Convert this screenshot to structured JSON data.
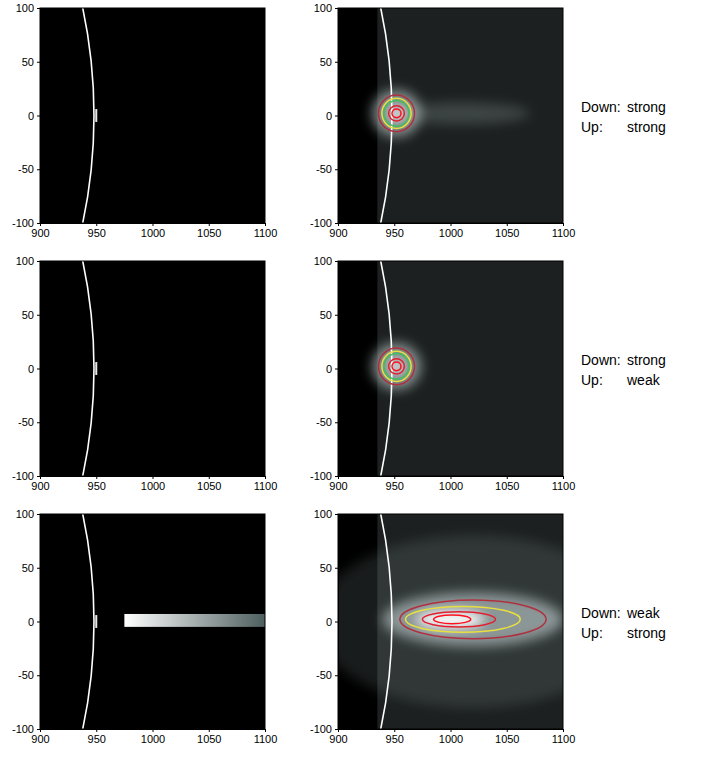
{
  "chart_data": [
    {
      "type": "image",
      "xlim": [
        900,
        1100
      ],
      "ylim": [
        -100,
        100
      ],
      "xticks": [
        900,
        950,
        1000,
        1050,
        1100
      ],
      "yticks": [
        -100,
        -50,
        0,
        50,
        100
      ],
      "limb": {
        "cx": 448,
        "cy": 0,
        "r": 500
      },
      "source": {
        "x": 950,
        "y0": -6,
        "y1": 6
      }
    },
    {
      "type": "image",
      "xlim": [
        900,
        1100
      ],
      "ylim": [
        -100,
        100
      ],
      "xticks": [
        900,
        950,
        1000,
        1050,
        1100
      ],
      "yticks": [
        -100,
        -50,
        0,
        50,
        100
      ],
      "limb": {
        "cx": 448,
        "cy": 0,
        "r": 500
      },
      "occulter_edge": 935,
      "glow": [
        {
          "x": 1010,
          "y": 2,
          "rx": 60,
          "ry": 10,
          "brightness": 0.2,
          "color": "#c8d6d6"
        },
        {
          "x": 952,
          "y": 2,
          "rx": 22,
          "ry": 22,
          "brightness": 0.6,
          "color": "#c8d6d6"
        },
        {
          "x": 952,
          "y": 2,
          "rx": 6,
          "ry": 6,
          "brightness": 1,
          "color": "#ffffff"
        }
      ],
      "contours": [
        {
          "x0": 936,
          "x1": 968,
          "y0": -15,
          "y1": 19,
          "color": "#b03040"
        },
        {
          "x0": 939,
          "x1": 965,
          "y0": -12,
          "y1": 16,
          "color": "#e8e040"
        },
        {
          "x0": 941,
          "x1": 963,
          "y0": -10,
          "y1": 14,
          "color": "#40c060"
        },
        {
          "x0": 945,
          "x1": 959,
          "y0": -5,
          "y1": 9,
          "color": "#e02030"
        },
        {
          "x0": 948,
          "x1": 956,
          "y0": -2,
          "y1": 6,
          "color": "#ff1020"
        }
      ],
      "annotation": [
        [
          "Down:",
          "strong"
        ],
        [
          "Up:",
          "strong"
        ]
      ]
    },
    {
      "type": "image",
      "xlim": [
        900,
        1100
      ],
      "ylim": [
        -100,
        100
      ],
      "xticks": [
        900,
        950,
        1000,
        1050,
        1100
      ],
      "yticks": [
        -100,
        -50,
        0,
        50,
        100
      ],
      "limb": {
        "cx": 448,
        "cy": 0,
        "r": 500
      },
      "source": {
        "x": 950,
        "y0": -6,
        "y1": 6
      }
    },
    {
      "type": "image",
      "xlim": [
        900,
        1100
      ],
      "ylim": [
        -100,
        100
      ],
      "xticks": [
        900,
        950,
        1000,
        1050,
        1100
      ],
      "yticks": [
        -100,
        -50,
        0,
        50,
        100
      ],
      "limb": {
        "cx": 448,
        "cy": 0,
        "r": 500
      },
      "occulter_edge": 935,
      "glow": [
        {
          "x": 952,
          "y": 2,
          "rx": 22,
          "ry": 22,
          "brightness": 0.6,
          "color": "#c8d6d6"
        },
        {
          "x": 952,
          "y": 2,
          "rx": 6,
          "ry": 6,
          "brightness": 1,
          "color": "#ffffff"
        }
      ],
      "contours": [
        {
          "x0": 936,
          "x1": 968,
          "y0": -15,
          "y1": 19,
          "color": "#b03040"
        },
        {
          "x0": 939,
          "x1": 965,
          "y0": -12,
          "y1": 16,
          "color": "#e8e040"
        },
        {
          "x0": 941,
          "x1": 963,
          "y0": -10,
          "y1": 14,
          "color": "#40c060"
        },
        {
          "x0": 945,
          "x1": 959,
          "y0": -5,
          "y1": 9,
          "color": "#e02030"
        },
        {
          "x0": 948,
          "x1": 956,
          "y0": -2,
          "y1": 6,
          "color": "#ff1020"
        }
      ],
      "annotation": [
        [
          "Down:",
          "strong"
        ],
        [
          "Up:",
          "weak"
        ]
      ]
    },
    {
      "type": "image",
      "xlim": [
        900,
        1100
      ],
      "ylim": [
        -100,
        100
      ],
      "xticks": [
        900,
        950,
        1000,
        1050,
        1100
      ],
      "yticks": [
        -100,
        -50,
        0,
        50,
        100
      ],
      "limb": {
        "cx": 448,
        "cy": 0,
        "r": 500
      },
      "source": {
        "x": 950,
        "y0": -6,
        "y1": 6
      },
      "bar": {
        "x0": 975,
        "x1": 1100,
        "y0": -5,
        "y1": 7
      }
    },
    {
      "type": "image",
      "xlim": [
        900,
        1100
      ],
      "ylim": [
        -100,
        100
      ],
      "xticks": [
        900,
        950,
        1000,
        1050,
        1100
      ],
      "yticks": [
        -100,
        -50,
        0,
        50,
        100
      ],
      "limb": {
        "cx": 448,
        "cy": 0,
        "r": 500
      },
      "occulter_edge": 935,
      "glow": [
        {
          "x": 1020,
          "y": 0,
          "rx": 140,
          "ry": 80,
          "brightness": 0.15,
          "color": "#a8baba"
        },
        {
          "x": 1020,
          "y": 2,
          "rx": 80,
          "ry": 25,
          "brightness": 0.6,
          "color": "#c8d6d6"
        },
        {
          "x": 1000,
          "y": 2,
          "rx": 30,
          "ry": 8,
          "brightness": 1,
          "color": "#ffffff"
        }
      ],
      "contours": [
        {
          "x0": 955,
          "x1": 1085,
          "y0": -16,
          "y1": 20,
          "color": "#b03040"
        },
        {
          "x0": 960,
          "x1": 1062,
          "y0": -10,
          "y1": 14,
          "color": "#e8e040"
        },
        {
          "x0": 975,
          "x1": 1040,
          "y0": -5,
          "y1": 9,
          "color": "#e02030"
        },
        {
          "x0": 985,
          "x1": 1018,
          "y0": -2,
          "y1": 6,
          "color": "#ff1020"
        }
      ],
      "annotation": [
        [
          "Down:",
          "weak"
        ],
        [
          "Up:",
          "strong"
        ]
      ]
    }
  ]
}
